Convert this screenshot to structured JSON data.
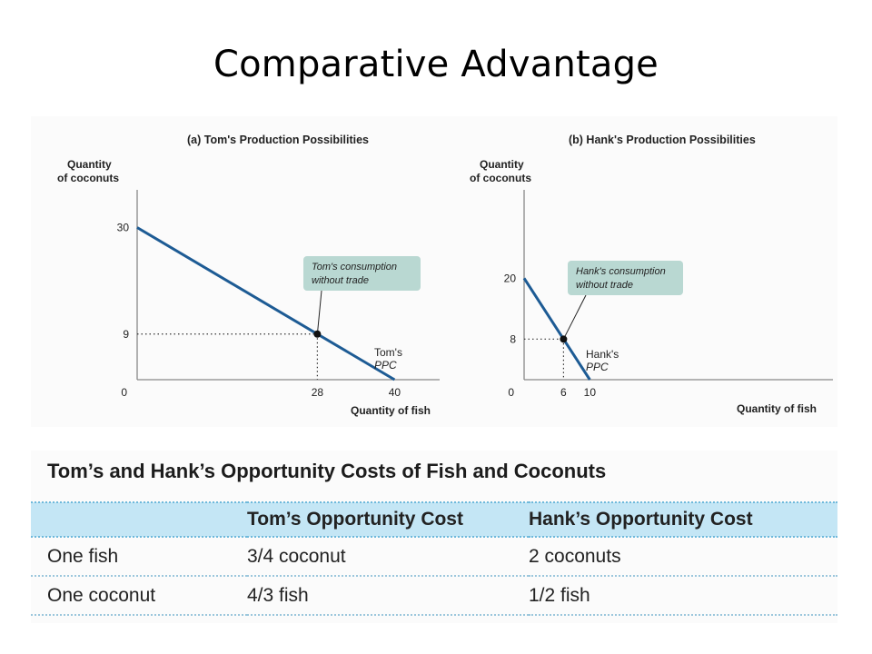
{
  "slide": {
    "title": "Comparative Advantage"
  },
  "chart_data": [
    {
      "type": "line",
      "title": "(a) Tom's Production Possibilities",
      "ylabel": [
        "Quantity",
        "of coconuts"
      ],
      "xlabel": "Quantity of fish",
      "origin_label": "0",
      "xlim": [
        0,
        47
      ],
      "ylim": [
        0,
        36
      ],
      "series": [
        {
          "name": "Tom's PPC",
          "label_lines": [
            "Tom's",
            "PPC"
          ],
          "x": [
            0,
            40
          ],
          "y": [
            30,
            0
          ]
        }
      ],
      "point": {
        "x": 28,
        "y": 9
      },
      "x_ticks": [
        "28",
        "40"
      ],
      "y_ticks": [
        "9",
        "30"
      ],
      "annotation": [
        "Tom's consumption",
        "without trade"
      ]
    },
    {
      "type": "line",
      "title": "(b) Hank's Production Possibilities",
      "ylabel": [
        "Quantity",
        "of coconuts"
      ],
      "xlabel": "Quantity of fish",
      "origin_label": "0",
      "xlim": [
        0,
        47
      ],
      "ylim": [
        0,
        36
      ],
      "series": [
        {
          "name": "Hank's PPC",
          "label_lines": [
            "Hank's",
            "PPC"
          ],
          "x": [
            0,
            10
          ],
          "y": [
            20,
            0
          ]
        }
      ],
      "point": {
        "x": 6,
        "y": 8
      },
      "x_ticks": [
        "6",
        "10"
      ],
      "y_ticks": [
        "8",
        "20"
      ],
      "annotation": [
        "Hank's consumption",
        "without trade"
      ]
    }
  ],
  "table": {
    "title": "Tom’s and Hank’s Opportunity Costs of Fish and Coconuts",
    "headers": [
      "",
      "Tom’s Opportunity Cost",
      "Hank’s Opportunity Cost"
    ],
    "rows": [
      [
        "One fish",
        "3/4 coconut",
        "2 coconuts"
      ],
      [
        "One coconut",
        "4/3 fish",
        "1/2 fish"
      ]
    ]
  },
  "colors": {
    "ppc_line": "#1d5b94",
    "annotation_box": "#b9d8d2",
    "table_header": "#c4e6f5"
  }
}
